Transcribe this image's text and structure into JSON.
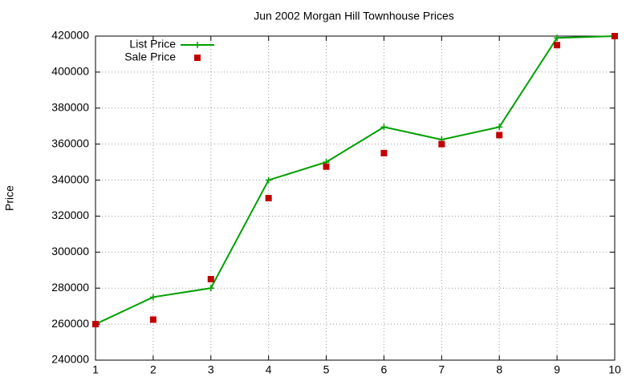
{
  "chart_data": {
    "type": "line",
    "title": "Jun 2002 Morgan Hill Townhouse Prices",
    "y_label": "Price",
    "x": [
      1,
      2,
      3,
      4,
      5,
      6,
      7,
      8,
      9,
      10
    ],
    "series": [
      {
        "name": "List Price",
        "color": "#00a000",
        "style": "linespoints",
        "marker": "plus",
        "values": [
          260000,
          275000,
          280000,
          340000,
          350000,
          369500,
          362500,
          369500,
          419000,
          420000
        ]
      },
      {
        "name": "Sale Price",
        "color": "#c00000",
        "style": "points",
        "marker": "square",
        "values": [
          260000,
          262500,
          285000,
          330000,
          347500,
          355000,
          360000,
          365000,
          415000,
          420000
        ]
      }
    ],
    "xlim": [
      1,
      10
    ],
    "xticks": [
      1,
      2,
      3,
      4,
      5,
      6,
      7,
      8,
      9,
      10
    ],
    "ylim": [
      240000,
      420000
    ],
    "yticks": [
      240000,
      260000,
      280000,
      300000,
      320000,
      340000,
      360000,
      380000,
      400000,
      420000
    ],
    "grid": true,
    "legend": "top-left"
  }
}
